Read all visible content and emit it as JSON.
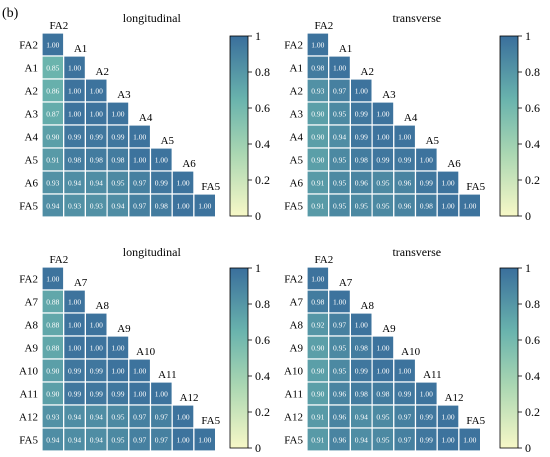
{
  "figure": {
    "panel_label": "(b)"
  },
  "colorbar": {
    "ticks": [
      "0",
      "0.2",
      "0.4",
      "0.6",
      "0.8",
      "1"
    ],
    "min": 0,
    "max": 1
  },
  "colors": {
    "cmap_low": "#f7f8c7",
    "cmap_mid1": "#a9d6b2",
    "cmap_mid2": "#69b3ad",
    "cmap_high": "#3a6f9c"
  },
  "chart_data": [
    {
      "type": "heatmap",
      "title": "longitudinal",
      "labels": [
        "FA2",
        "A1",
        "A2",
        "A3",
        "A4",
        "A5",
        "A6",
        "FA5"
      ],
      "rows": [
        [
          "1.00"
        ],
        [
          "0.85",
          "1.00"
        ],
        [
          "0.86",
          "1.00",
          "1.00"
        ],
        [
          "0.87",
          "1.00",
          "1.00",
          "1.00"
        ],
        [
          "0.90",
          "0.99",
          "0.99",
          "0.99",
          "1.00"
        ],
        [
          "0.91",
          "0.98",
          "0.98",
          "0.98",
          "1.00",
          "1.00"
        ],
        [
          "0.93",
          "0.94",
          "0.94",
          "0.95",
          "0.97",
          "0.99",
          "1.00"
        ],
        [
          "0.94",
          "0.93",
          "0.93",
          "0.94",
          "0.97",
          "0.98",
          "1.00",
          "1.00"
        ]
      ],
      "zlim": [
        0,
        1
      ]
    },
    {
      "type": "heatmap",
      "title": "transverse",
      "labels": [
        "FA2",
        "A1",
        "A2",
        "A3",
        "A4",
        "A5",
        "A6",
        "FA5"
      ],
      "rows": [
        [
          "1.00"
        ],
        [
          "0.98",
          "1.00"
        ],
        [
          "0.93",
          "0.97",
          "1.00"
        ],
        [
          "0.90",
          "0.95",
          "0.99",
          "1.00"
        ],
        [
          "0.90",
          "0.94",
          "0.99",
          "1.00",
          "1.00"
        ],
        [
          "0.90",
          "0.95",
          "0.98",
          "0.99",
          "0.99",
          "1.00"
        ],
        [
          "0.91",
          "0.95",
          "0.96",
          "0.95",
          "0.96",
          "0.99",
          "1.00"
        ],
        [
          "0.91",
          "0.95",
          "0.95",
          "0.95",
          "0.96",
          "0.98",
          "1.00",
          "1.00"
        ]
      ],
      "zlim": [
        0,
        1
      ]
    },
    {
      "type": "heatmap",
      "title": "longitudinal",
      "labels": [
        "FA2",
        "A7",
        "A8",
        "A9",
        "A10",
        "A11",
        "A12",
        "FA5"
      ],
      "rows": [
        [
          "1.00"
        ],
        [
          "0.88",
          "1.00"
        ],
        [
          "0.88",
          "1.00",
          "1.00"
        ],
        [
          "0.88",
          "1.00",
          "1.00",
          "1.00"
        ],
        [
          "0.90",
          "0.99",
          "0.99",
          "1.00",
          "1.00"
        ],
        [
          "0.90",
          "0.99",
          "0.99",
          "0.99",
          "1.00",
          "1.00"
        ],
        [
          "0.93",
          "0.94",
          "0.94",
          "0.95",
          "0.97",
          "0.97",
          "1.00"
        ],
        [
          "0.94",
          "0.94",
          "0.94",
          "0.95",
          "0.97",
          "0.97",
          "1.00",
          "1.00"
        ]
      ],
      "zlim": [
        0,
        1
      ]
    },
    {
      "type": "heatmap",
      "title": "transverse",
      "labels": [
        "FA2",
        "A7",
        "A8",
        "A9",
        "A10",
        "A11",
        "A12",
        "FA5"
      ],
      "rows": [
        [
          "1.00"
        ],
        [
          "0.98",
          "1.00"
        ],
        [
          "0.92",
          "0.97",
          "1.00"
        ],
        [
          "0.90",
          "0.95",
          "0.98",
          "1.00"
        ],
        [
          "0.90",
          "0.95",
          "0.99",
          "1.00",
          "1.00"
        ],
        [
          "0.90",
          "0.96",
          "0.98",
          "0.98",
          "0.99",
          "1.00"
        ],
        [
          "0.91",
          "0.96",
          "0.94",
          "0.95",
          "0.97",
          "0.99",
          "1.00"
        ],
        [
          "0.91",
          "0.96",
          "0.94",
          "0.95",
          "0.97",
          "0.99",
          "1.00",
          "1.00"
        ]
      ],
      "zlim": [
        0,
        1
      ]
    }
  ]
}
